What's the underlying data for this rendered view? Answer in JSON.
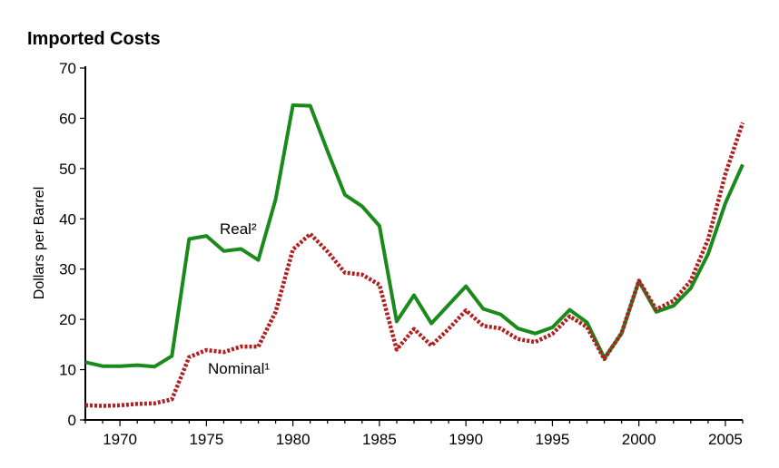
{
  "chart_data": {
    "type": "line",
    "title": "Imported Costs",
    "ylabel": "Dollars per Barrel",
    "xlabel": "",
    "xlim": [
      1968,
      2006
    ],
    "ylim": [
      0,
      70
    ],
    "x_ticks": [
      1970,
      1975,
      1980,
      1985,
      1990,
      1995,
      2000,
      2005
    ],
    "y_ticks": [
      0,
      10,
      20,
      30,
      40,
      50,
      60,
      70
    ],
    "grid": false,
    "x": [
      1968,
      1969,
      1970,
      1971,
      1972,
      1973,
      1974,
      1975,
      1976,
      1977,
      1978,
      1979,
      1980,
      1981,
      1982,
      1983,
      1984,
      1985,
      1986,
      1987,
      1988,
      1989,
      1990,
      1991,
      1992,
      1993,
      1994,
      1995,
      1996,
      1997,
      1998,
      1999,
      2000,
      2001,
      2002,
      2003,
      2004,
      2005,
      2006
    ],
    "series": [
      {
        "name": "Real²",
        "color": "#1a8a1a",
        "style": "solid",
        "values": [
          11.5,
          10.7,
          10.7,
          10.9,
          10.6,
          12.7,
          36.0,
          36.6,
          33.6,
          34.0,
          31.8,
          43.9,
          62.6,
          62.5,
          53.5,
          44.8,
          42.5,
          38.6,
          19.6,
          24.8,
          19.2,
          22.9,
          26.6,
          22.1,
          21.0,
          18.2,
          17.2,
          18.4,
          21.9,
          19.4,
          12.3,
          17.2,
          27.6,
          21.5,
          22.7,
          26.2,
          33.0,
          43.1,
          50.8
        ]
      },
      {
        "name": "Nominal¹",
        "color": "#b02020",
        "style": "dotted",
        "values": [
          2.9,
          2.8,
          2.9,
          3.2,
          3.3,
          4.1,
          12.5,
          13.9,
          13.5,
          14.6,
          14.6,
          21.5,
          33.9,
          37.0,
          33.5,
          29.3,
          28.9,
          26.9,
          14.0,
          18.1,
          14.8,
          18.1,
          21.8,
          18.7,
          18.2,
          16.1,
          15.5,
          17.1,
          20.6,
          18.5,
          12.1,
          17.3,
          27.7,
          22.0,
          23.7,
          27.7,
          35.9,
          48.9,
          59.1
        ]
      }
    ]
  }
}
